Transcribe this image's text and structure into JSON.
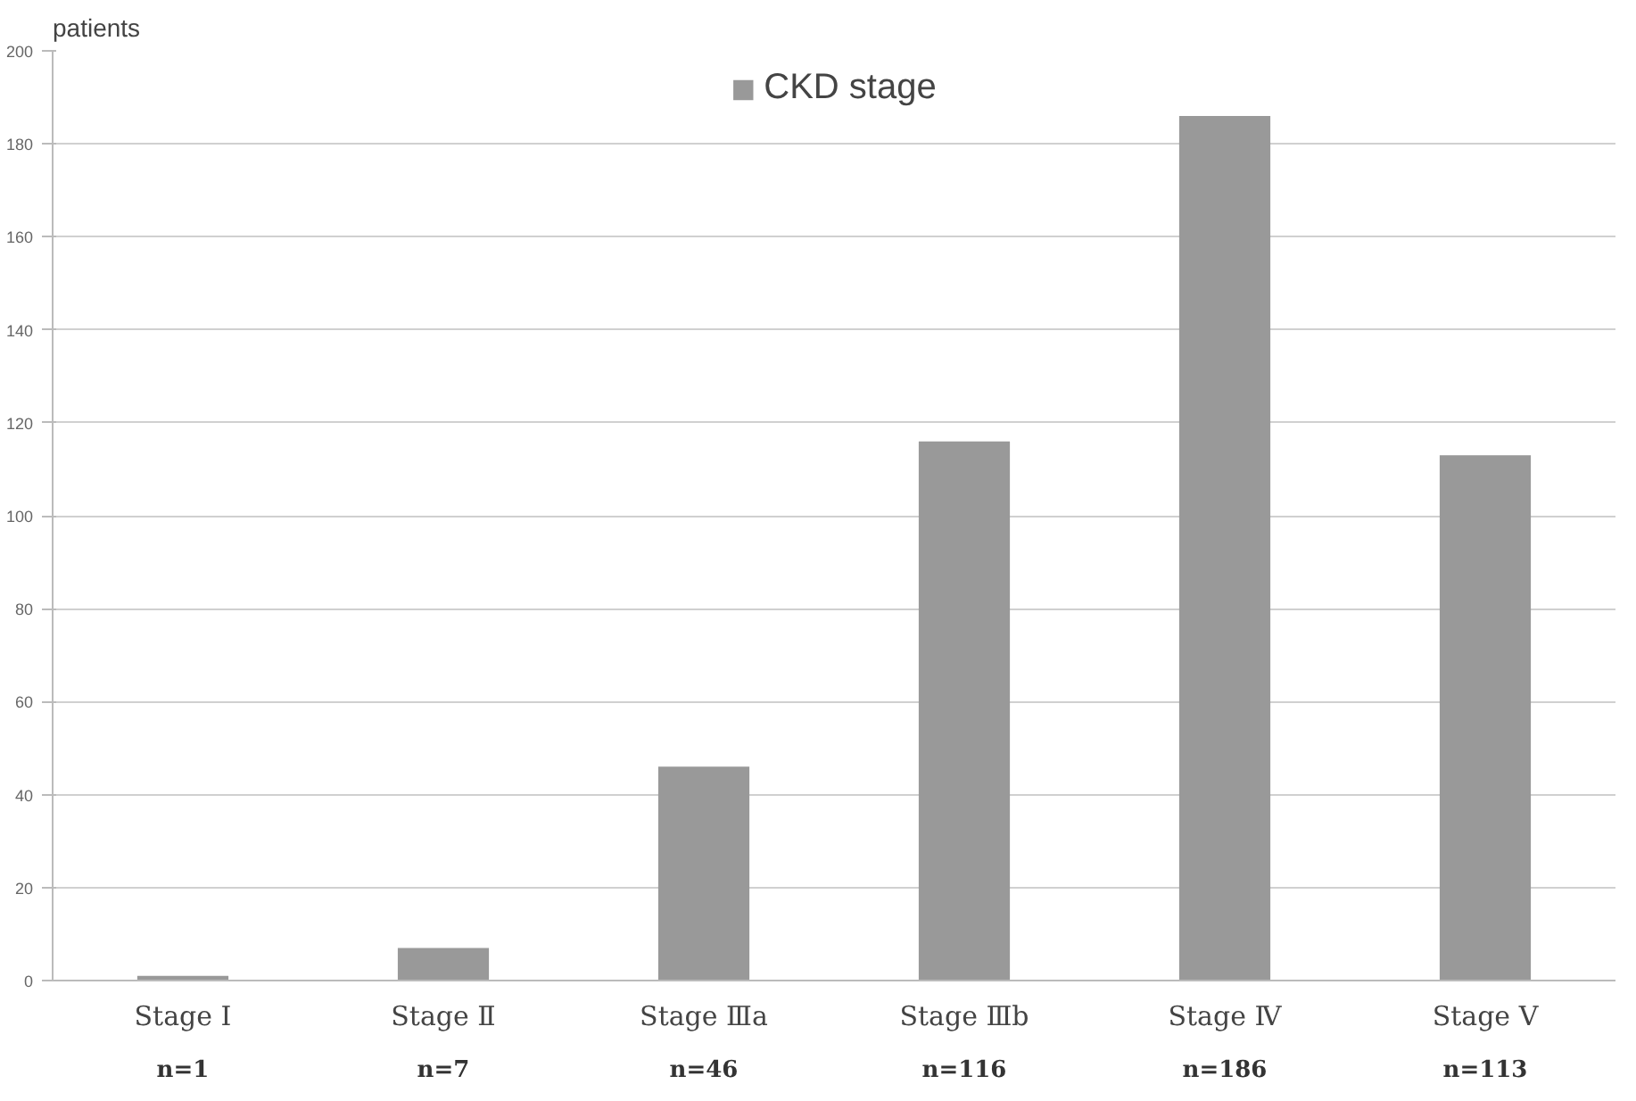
{
  "chart_data": {
    "type": "bar",
    "ylabel": "patients",
    "categories": [
      "Stage Ⅰ",
      "Stage Ⅱ",
      "Stage Ⅲa",
      "Stage Ⅲb",
      "Stage Ⅳ",
      "Stage Ⅴ"
    ],
    "series": [
      {
        "name": "CKD stage",
        "color": "#999999",
        "values": [
          1,
          7,
          46,
          116,
          186,
          113
        ]
      }
    ],
    "value_labels": [
      "n=1",
      "n=7",
      "n=46",
      "n=116",
      "n=186",
      "n=113"
    ],
    "ylim": [
      0,
      200
    ],
    "yticks": [
      0,
      20,
      40,
      60,
      80,
      100,
      120,
      140,
      160,
      180,
      200
    ],
    "grid": "y",
    "legend": "top"
  }
}
